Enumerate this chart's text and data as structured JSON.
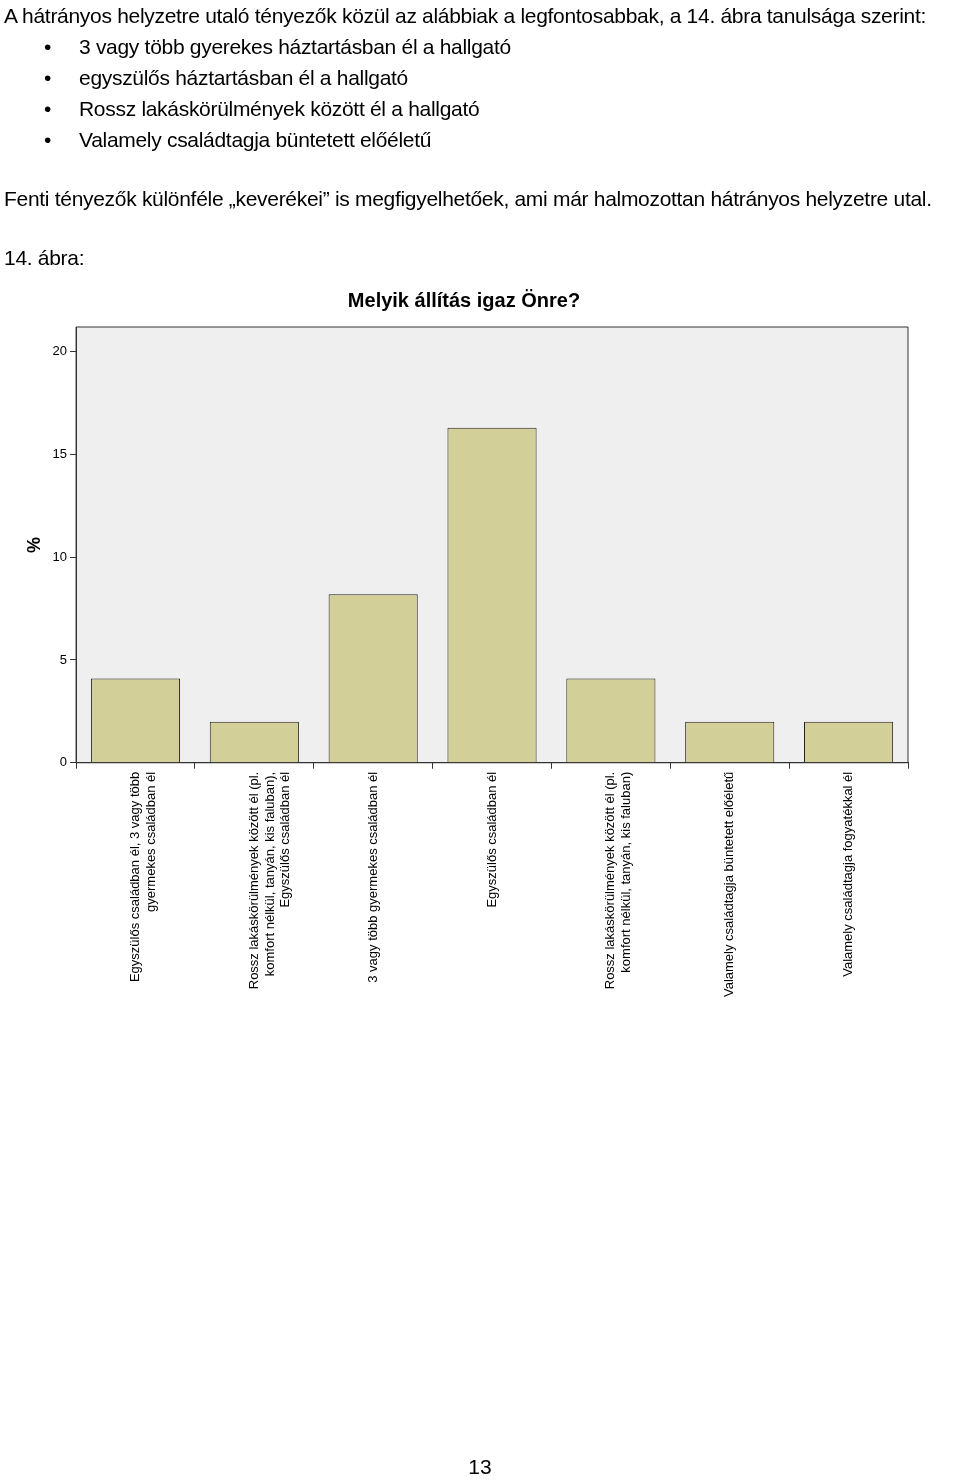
{
  "chart_data": {
    "type": "bar",
    "title": "Melyik állítás igaz Önre?",
    "ylabel": "%",
    "categories": [
      "Egyszülős családban él, 3 vagy több gyermekes családban él",
      "Rossz lakáskörülmények között él (pl. komfort nélkül, tanyán, kis faluban), Egyszülős családban él",
      "3 vagy több gyermekes családban él",
      "Egyszülős családban él",
      "Rossz lakáskörülmények között él (pl. komfort nélkül, tanyán, kis faluban)",
      "Valamely családtagja büntetett előéletű",
      "Valamely családtagja fogyatékkal él"
    ],
    "values": [
      4.1,
      2.0,
      8.2,
      16.3,
      4.1,
      2.0,
      2.0
    ],
    "color": "#d3cf98",
    "ylim": [
      0,
      21.2
    ],
    "yticks": [
      0,
      5,
      10,
      15,
      20
    ],
    "grid": false,
    "legend": false,
    "annotations": [
      "A hátrányos helyzetre utaló tényezők közül az alábbiak a legfontosabbak, a 14. ábra tanulsága szerint:",
      "• 3 vagy több gyerekes háztartásban él a hallgató",
      "• egyszülős háztartásban él a hallgató",
      "• Rossz lakáskörülmények között él a hallgató",
      "• Valamely családtagja büntetett előéletű",
      "Fenti tényezők különféle „keverékei” is megfigyelhetőek, ami már halmozottan hátrányos helyzetre utal.",
      "14. ábra:",
      "13"
    ]
  }
}
